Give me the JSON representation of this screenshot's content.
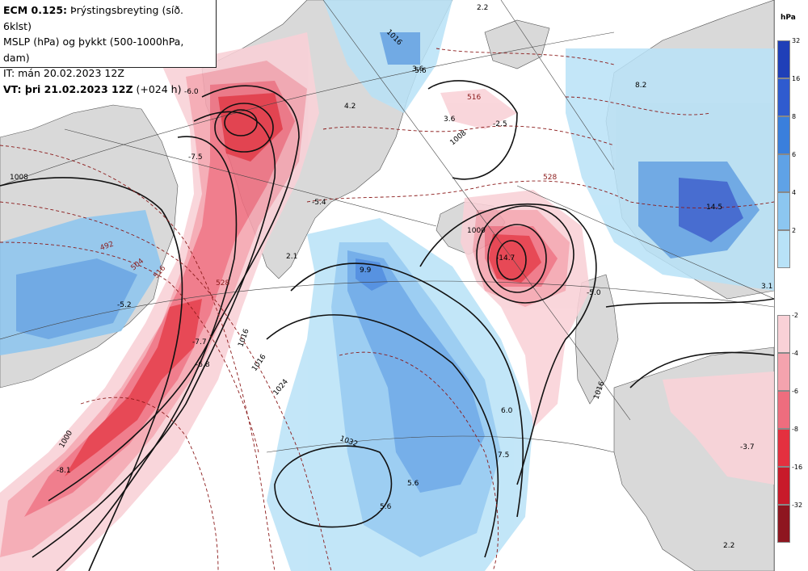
{
  "header": {
    "model": "ECM 0.125:",
    "title_rest": " Þrýstingsbreyting (síð. 6klst)",
    "line2": "MSLP (hPa) og þykkt (500-1000hPa, dam)",
    "line3": "IT: mán 20.02.2023 12Z",
    "vt_label": "VT: þri 21.02.2023 12Z",
    "vt_step": " (+024 h)"
  },
  "legend": {
    "unit": "hPa",
    "rise_colors": [
      "#b8e2f7",
      "#8cc6f0",
      "#5fa2e6",
      "#3a7fdc",
      "#2f5bcf",
      "#1f3fb8"
    ],
    "rise_labels": [
      "32",
      "16",
      "8",
      "6",
      "4",
      "2"
    ],
    "fall_colors": [
      "#f9d1d7",
      "#f4a3ae",
      "#ee6d7e",
      "#e4303f",
      "#c81a2a",
      "#8e1620"
    ],
    "fall_labels": [
      "-2",
      "-4",
      "-6",
      "-8",
      "-16",
      "-32"
    ]
  },
  "map": {
    "isobar_labels": [
      "1008",
      "1016",
      "1008",
      "1016",
      "1024",
      "1032",
      "1000",
      "1008",
      "1000",
      "1016"
    ],
    "thickness_labels": [
      "492",
      "504",
      "516",
      "528",
      "528",
      "516"
    ],
    "value_labels": [
      "-6.0",
      "-7.5",
      "4.2",
      "-5.6",
      "-5.4",
      "2.1",
      "9.9",
      "-7.7",
      "-6.8",
      "-5.2",
      "-8.1",
      "5.6",
      "5.6",
      "6.0",
      "7.5",
      "-14.7",
      "-2.5",
      "14.5",
      "3.1",
      "-3.7",
      "2.2",
      "3.6",
      "2.2",
      "3.6",
      "8.2",
      "-5.0"
    ]
  }
}
